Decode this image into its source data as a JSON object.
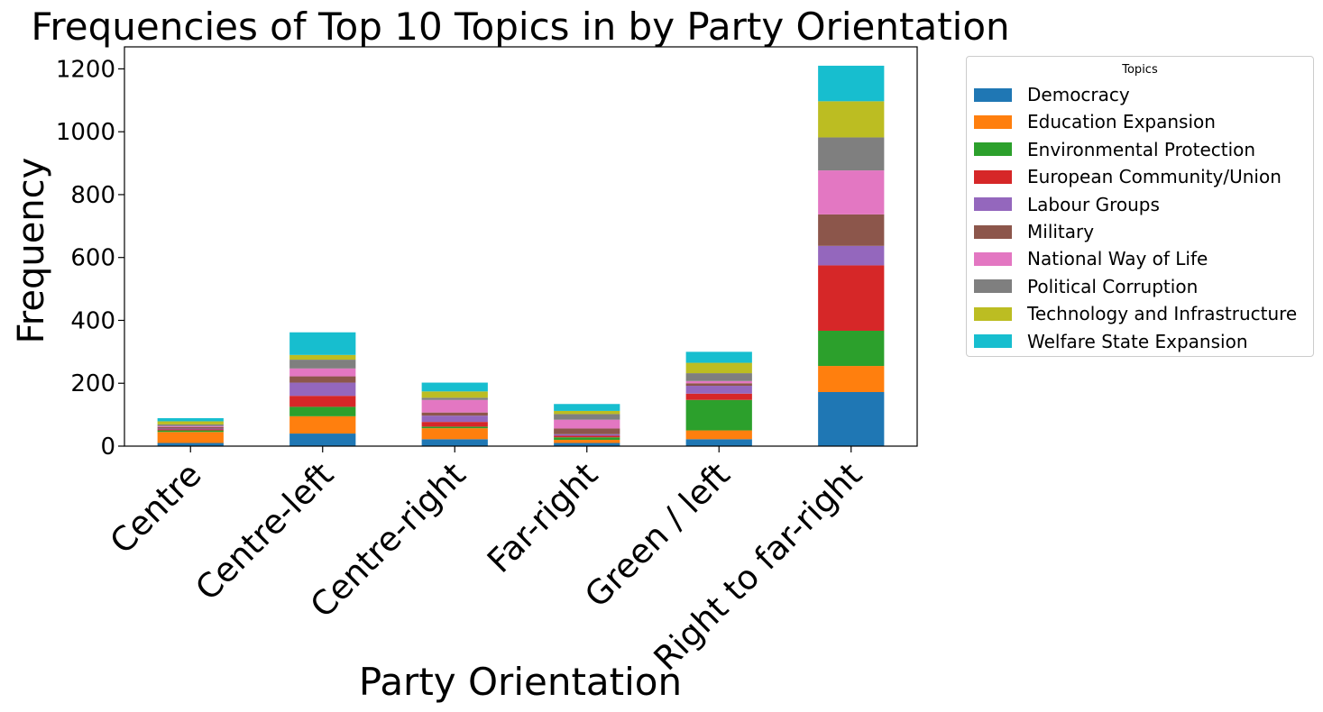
{
  "chart_data": {
    "type": "bar",
    "stacked": true,
    "title": "Frequencies of Top 10 Topics in by Party Orientation",
    "xlabel": "Party Orientation",
    "ylabel": "Frequency",
    "ylim": [
      0,
      1270
    ],
    "yticks": [
      0,
      200,
      400,
      600,
      800,
      1000,
      1200
    ],
    "categories": [
      "Centre",
      "Centre-left",
      "Centre-right",
      "Far-right",
      "Green / left",
      "Right to far-right"
    ],
    "legend": {
      "title": "Topics",
      "placement": "outside-right"
    },
    "series": [
      {
        "name": "Democracy",
        "color": "#1f77b4",
        "values": [
          10,
          40,
          22,
          10,
          22,
          172
        ]
      },
      {
        "name": "Education Expansion",
        "color": "#ff7f0e",
        "values": [
          35,
          55,
          35,
          10,
          28,
          83
        ]
      },
      {
        "name": "Environmental Protection",
        "color": "#2ca02c",
        "values": [
          5,
          30,
          5,
          8,
          97,
          112
        ]
      },
      {
        "name": "European Community/Union",
        "color": "#d62728",
        "values": [
          3,
          35,
          15,
          5,
          20,
          208
        ]
      },
      {
        "name": "Labour Groups",
        "color": "#9467bd",
        "values": [
          3,
          42,
          20,
          5,
          25,
          62
        ]
      },
      {
        "name": "Military",
        "color": "#8c564b",
        "values": [
          5,
          20,
          10,
          18,
          8,
          100
        ]
      },
      {
        "name": "National Way of Life",
        "color": "#e377c2",
        "values": [
          3,
          25,
          40,
          28,
          7,
          140
        ]
      },
      {
        "name": "Political Corruption",
        "color": "#7f7f7f",
        "values": [
          5,
          28,
          7,
          18,
          25,
          105
        ]
      },
      {
        "name": "Technology and Infrastructure",
        "color": "#bcbd22",
        "values": [
          10,
          15,
          20,
          10,
          33,
          115
        ]
      },
      {
        "name": "Welfare State Expansion",
        "color": "#17becf",
        "values": [
          10,
          72,
          28,
          22,
          35,
          113
        ]
      }
    ]
  }
}
